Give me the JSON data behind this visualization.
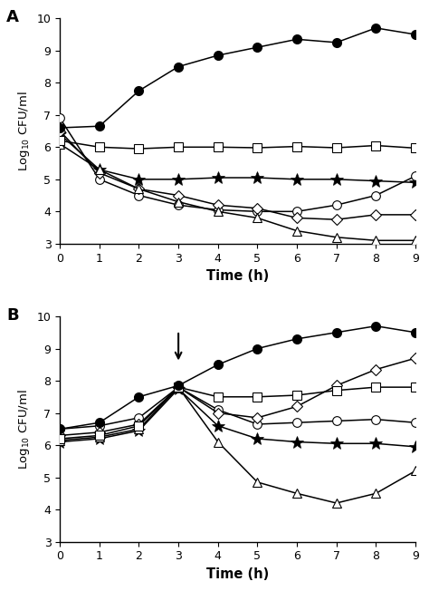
{
  "panel_A": {
    "time": [
      0,
      1,
      2,
      3,
      4,
      5,
      6,
      7,
      8,
      9
    ],
    "filled_circle": [
      6.6,
      6.65,
      7.75,
      8.5,
      8.85,
      9.1,
      9.35,
      9.25,
      9.7,
      9.5
    ],
    "square": [
      6.2,
      6.0,
      5.95,
      6.0,
      6.0,
      5.98,
      6.02,
      5.98,
      6.05,
      5.97
    ],
    "asterisk": [
      6.4,
      5.3,
      5.0,
      5.0,
      5.05,
      5.05,
      5.0,
      5.0,
      4.95,
      4.9
    ],
    "circle": [
      6.9,
      5.0,
      4.5,
      4.2,
      4.05,
      4.0,
      4.0,
      4.2,
      4.5,
      5.1
    ],
    "diamond": [
      6.5,
      5.2,
      4.7,
      4.5,
      4.2,
      4.1,
      3.8,
      3.75,
      3.9,
      3.9
    ],
    "triangle": [
      6.1,
      5.3,
      4.7,
      4.3,
      4.0,
      3.8,
      3.4,
      3.2,
      3.1,
      3.1
    ]
  },
  "panel_B": {
    "time": [
      0,
      1,
      2,
      3,
      4,
      5,
      6,
      7,
      8,
      9
    ],
    "filled_circle": [
      6.5,
      6.7,
      7.5,
      7.85,
      8.5,
      9.0,
      9.3,
      9.5,
      9.7,
      9.5
    ],
    "square": [
      6.2,
      6.3,
      6.6,
      7.8,
      7.5,
      7.5,
      7.55,
      7.7,
      7.8,
      7.8
    ],
    "circle": [
      6.5,
      6.6,
      6.85,
      7.8,
      7.1,
      6.65,
      6.7,
      6.75,
      6.8,
      6.7
    ],
    "diamond": [
      6.3,
      6.4,
      6.65,
      7.8,
      7.0,
      6.85,
      7.2,
      7.85,
      8.35,
      8.7
    ],
    "asterisk": [
      6.1,
      6.2,
      6.45,
      7.75,
      6.6,
      6.2,
      6.1,
      6.05,
      6.05,
      5.95
    ],
    "triangle": [
      6.15,
      6.25,
      6.5,
      7.8,
      6.1,
      4.85,
      4.5,
      4.2,
      4.5,
      5.2
    ]
  },
  "ylim": [
    3,
    10
  ],
  "yticks": [
    3,
    4,
    5,
    6,
    7,
    8,
    9,
    10
  ],
  "xlim": [
    0,
    9
  ],
  "xticks": [
    0,
    1,
    2,
    3,
    4,
    5,
    6,
    7,
    8,
    9
  ],
  "ylabel": "Log$_{10}$ CFU/ml",
  "xlabel": "Time (h)",
  "label_A": "A",
  "label_B": "B",
  "marker_size_circle": 7,
  "marker_size_square": 7,
  "marker_size_asterisk": 10,
  "marker_size_diamond": 6,
  "marker_size_triangle": 7,
  "lw": 1.1,
  "bg_color": "#ffffff"
}
